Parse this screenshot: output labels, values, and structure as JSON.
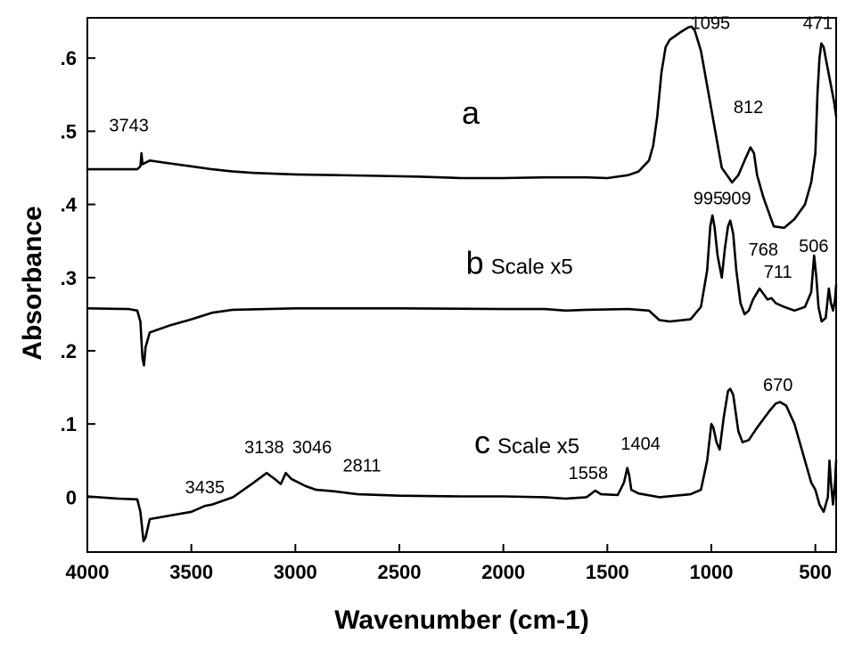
{
  "chart_data": {
    "type": "line",
    "xlabel": "Wavenumber (cm-1)",
    "ylabel": "Absorbance",
    "xlim": [
      4000,
      400
    ],
    "ylim": [
      -0.075,
      0.655
    ],
    "x_reversed": true,
    "x_ticks": [
      4000,
      3500,
      3000,
      2500,
      2000,
      1500,
      1000,
      500
    ],
    "x_tick_labels": [
      "4000",
      "3500",
      "3000",
      "2500",
      "2000",
      "1500",
      "1000",
      "500"
    ],
    "y_ticks": [
      0,
      0.1,
      0.2,
      0.3,
      0.4,
      0.5,
      0.6
    ],
    "y_tick_labels": [
      "0",
      ".1",
      ".2",
      ".3",
      ".4",
      ".5",
      ".6"
    ],
    "grid": false,
    "legend": "none",
    "series": [
      {
        "name": "a",
        "label_note": "",
        "label_pos": [
          2200,
          0.51
        ],
        "points": [
          [
            4000,
            0.448
          ],
          [
            3760,
            0.448
          ],
          [
            3745,
            0.452
          ],
          [
            3740,
            0.47
          ],
          [
            3735,
            0.455
          ],
          [
            3700,
            0.46
          ],
          [
            3600,
            0.456
          ],
          [
            3500,
            0.452
          ],
          [
            3400,
            0.448
          ],
          [
            3300,
            0.445
          ],
          [
            3200,
            0.443
          ],
          [
            3000,
            0.441
          ],
          [
            2800,
            0.44
          ],
          [
            2600,
            0.439
          ],
          [
            2400,
            0.438
          ],
          [
            2200,
            0.436
          ],
          [
            2000,
            0.436
          ],
          [
            1800,
            0.437
          ],
          [
            1600,
            0.437
          ],
          [
            1500,
            0.436
          ],
          [
            1400,
            0.44
          ],
          [
            1350,
            0.445
          ],
          [
            1300,
            0.46
          ],
          [
            1280,
            0.48
          ],
          [
            1260,
            0.52
          ],
          [
            1240,
            0.58
          ],
          [
            1220,
            0.615
          ],
          [
            1200,
            0.625
          ],
          [
            1150,
            0.635
          ],
          [
            1110,
            0.642
          ],
          [
            1095,
            0.643
          ],
          [
            1080,
            0.638
          ],
          [
            1050,
            0.61
          ],
          [
            1000,
            0.53
          ],
          [
            950,
            0.45
          ],
          [
            900,
            0.43
          ],
          [
            870,
            0.44
          ],
          [
            840,
            0.46
          ],
          [
            812,
            0.478
          ],
          [
            795,
            0.47
          ],
          [
            780,
            0.44
          ],
          [
            750,
            0.41
          ],
          [
            700,
            0.37
          ],
          [
            650,
            0.368
          ],
          [
            600,
            0.38
          ],
          [
            550,
            0.4
          ],
          [
            520,
            0.43
          ],
          [
            500,
            0.47
          ],
          [
            490,
            0.55
          ],
          [
            480,
            0.6
          ],
          [
            471,
            0.62
          ],
          [
            460,
            0.615
          ],
          [
            450,
            0.6
          ],
          [
            430,
            0.57
          ],
          [
            410,
            0.54
          ],
          [
            400,
            0.52
          ]
        ]
      },
      {
        "name": "b",
        "label_note": "Scale x5",
        "label_pos": [
          2180,
          0.305
        ],
        "points": [
          [
            4000,
            0.258
          ],
          [
            3800,
            0.257
          ],
          [
            3760,
            0.255
          ],
          [
            3745,
            0.24
          ],
          [
            3735,
            0.19
          ],
          [
            3728,
            0.18
          ],
          [
            3720,
            0.205
          ],
          [
            3700,
            0.225
          ],
          [
            3600,
            0.235
          ],
          [
            3500,
            0.243
          ],
          [
            3400,
            0.252
          ],
          [
            3300,
            0.256
          ],
          [
            3000,
            0.258
          ],
          [
            2500,
            0.258
          ],
          [
            2000,
            0.257
          ],
          [
            1800,
            0.257
          ],
          [
            1700,
            0.255
          ],
          [
            1600,
            0.256
          ],
          [
            1400,
            0.257
          ],
          [
            1300,
            0.255
          ],
          [
            1250,
            0.242
          ],
          [
            1200,
            0.24
          ],
          [
            1100,
            0.243
          ],
          [
            1050,
            0.26
          ],
          [
            1020,
            0.31
          ],
          [
            1005,
            0.37
          ],
          [
            995,
            0.385
          ],
          [
            985,
            0.37
          ],
          [
            970,
            0.33
          ],
          [
            950,
            0.3
          ],
          [
            935,
            0.34
          ],
          [
            920,
            0.37
          ],
          [
            909,
            0.378
          ],
          [
            895,
            0.36
          ],
          [
            880,
            0.31
          ],
          [
            860,
            0.265
          ],
          [
            840,
            0.25
          ],
          [
            820,
            0.255
          ],
          [
            800,
            0.27
          ],
          [
            768,
            0.285
          ],
          [
            750,
            0.278
          ],
          [
            730,
            0.27
          ],
          [
            711,
            0.272
          ],
          [
            690,
            0.265
          ],
          [
            650,
            0.26
          ],
          [
            600,
            0.255
          ],
          [
            550,
            0.26
          ],
          [
            520,
            0.28
          ],
          [
            506,
            0.33
          ],
          [
            495,
            0.3
          ],
          [
            485,
            0.26
          ],
          [
            470,
            0.24
          ],
          [
            450,
            0.245
          ],
          [
            435,
            0.285
          ],
          [
            425,
            0.265
          ],
          [
            415,
            0.255
          ],
          [
            405,
            0.27
          ],
          [
            400,
            0.29
          ]
        ]
      },
      {
        "name": "c",
        "label_note": "Scale x5",
        "label_pos": [
          2140,
          0.06
        ],
        "points": [
          [
            4000,
            0.001
          ],
          [
            3850,
            -0.002
          ],
          [
            3760,
            -0.003
          ],
          [
            3745,
            -0.02
          ],
          [
            3730,
            -0.06
          ],
          [
            3720,
            -0.055
          ],
          [
            3700,
            -0.03
          ],
          [
            3600,
            -0.025
          ],
          [
            3500,
            -0.02
          ],
          [
            3435,
            -0.012
          ],
          [
            3400,
            -0.01
          ],
          [
            3300,
            0.0
          ],
          [
            3200,
            0.02
          ],
          [
            3138,
            0.033
          ],
          [
            3100,
            0.025
          ],
          [
            3070,
            0.018
          ],
          [
            3046,
            0.033
          ],
          [
            3020,
            0.025
          ],
          [
            2950,
            0.015
          ],
          [
            2900,
            0.01
          ],
          [
            2811,
            0.008
          ],
          [
            2700,
            0.004
          ],
          [
            2500,
            0.002
          ],
          [
            2200,
            0.001
          ],
          [
            2000,
            0.001
          ],
          [
            1800,
            0.0
          ],
          [
            1700,
            -0.002
          ],
          [
            1600,
            0.0
          ],
          [
            1558,
            0.009
          ],
          [
            1530,
            0.004
          ],
          [
            1450,
            0.003
          ],
          [
            1420,
            0.02
          ],
          [
            1404,
            0.04
          ],
          [
            1395,
            0.03
          ],
          [
            1385,
            0.01
          ],
          [
            1350,
            0.005
          ],
          [
            1250,
            0.0
          ],
          [
            1100,
            0.004
          ],
          [
            1050,
            0.01
          ],
          [
            1020,
            0.05
          ],
          [
            1000,
            0.1
          ],
          [
            990,
            0.095
          ],
          [
            975,
            0.075
          ],
          [
            960,
            0.065
          ],
          [
            940,
            0.11
          ],
          [
            920,
            0.145
          ],
          [
            909,
            0.148
          ],
          [
            895,
            0.14
          ],
          [
            870,
            0.09
          ],
          [
            850,
            0.075
          ],
          [
            820,
            0.078
          ],
          [
            780,
            0.095
          ],
          [
            720,
            0.118
          ],
          [
            690,
            0.128
          ],
          [
            670,
            0.13
          ],
          [
            640,
            0.125
          ],
          [
            600,
            0.1
          ],
          [
            570,
            0.07
          ],
          [
            550,
            0.05
          ],
          [
            520,
            0.02
          ],
          [
            500,
            0.01
          ],
          [
            480,
            -0.01
          ],
          [
            460,
            -0.02
          ],
          [
            440,
            0.0
          ],
          [
            432,
            0.05
          ],
          [
            425,
            0.02
          ],
          [
            415,
            -0.01
          ],
          [
            405,
            0.02
          ],
          [
            400,
            0.05
          ]
        ]
      }
    ],
    "annotations": [
      {
        "text": "3743",
        "x": 3800,
        "y": 0.5
      },
      {
        "text": "1095",
        "x": 1005,
        "y": 0.64
      },
      {
        "text": "471",
        "x": 488,
        "y": 0.64
      },
      {
        "text": "812",
        "x": 822,
        "y": 0.525
      },
      {
        "text": "995",
        "x": 1015,
        "y": 0.4
      },
      {
        "text": "909",
        "x": 880,
        "y": 0.4
      },
      {
        "text": "768",
        "x": 750,
        "y": 0.33
      },
      {
        "text": "711",
        "x": 680,
        "y": 0.3
      },
      {
        "text": "506",
        "x": 508,
        "y": 0.335
      },
      {
        "text": "670",
        "x": 680,
        "y": 0.145
      },
      {
        "text": "1404",
        "x": 1340,
        "y": 0.065
      },
      {
        "text": "1558",
        "x": 1592,
        "y": 0.025
      },
      {
        "text": "3138",
        "x": 3150,
        "y": 0.06
      },
      {
        "text": "3046",
        "x": 2920,
        "y": 0.06
      },
      {
        "text": "2811",
        "x": 2680,
        "y": 0.035
      },
      {
        "text": "3435",
        "x": 3435,
        "y": 0.005
      }
    ]
  }
}
